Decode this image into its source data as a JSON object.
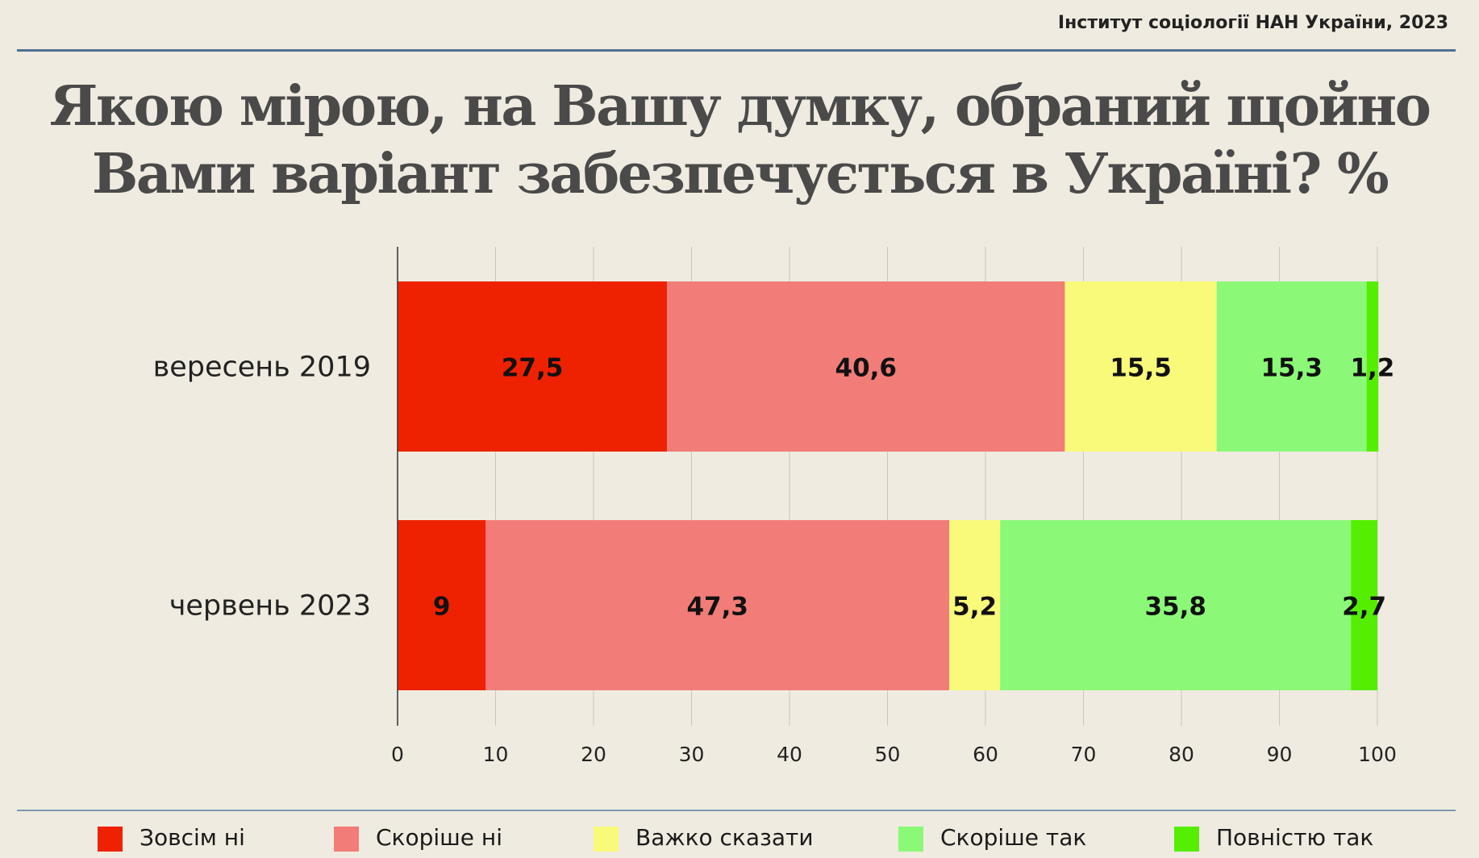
{
  "header": {
    "source": "Інститут соціології НАН України, 2023",
    "title_line1": "Якою мірою, на Вашу думку, обраний щойно",
    "title_line2": "Вами варіант забезпечується в Україні? %"
  },
  "chart_data": {
    "type": "bar",
    "orientation": "horizontal",
    "stacked": true,
    "categories": [
      "вересень 2019",
      "червень 2023"
    ],
    "series": [
      {
        "name": "Зовсім ні",
        "color": "#ee2200",
        "values": [
          27.5,
          9
        ]
      },
      {
        "name": "Скоріше ні",
        "color": "#f17c78",
        "values": [
          40.6,
          47.3
        ]
      },
      {
        "name": "Важко сказати",
        "color": "#f9f97a",
        "values": [
          15.5,
          5.2
        ]
      },
      {
        "name": "Скоріше так",
        "color": "#8cf878",
        "values": [
          15.3,
          35.8
        ]
      },
      {
        "name": "Повністю так",
        "color": "#55ee00",
        "values": [
          1.2,
          2.7
        ]
      }
    ],
    "data_labels": [
      [
        "27,5",
        "40,6",
        "15,5",
        "15,3",
        "1,2"
      ],
      [
        "9",
        "47,3",
        "5,2",
        "35,8",
        "2,7"
      ]
    ],
    "xlim": [
      0,
      100
    ],
    "xticks": [
      "0",
      "10",
      "20",
      "30",
      "40",
      "50",
      "60",
      "70",
      "80",
      "90",
      "100"
    ],
    "grid": true,
    "legend_position": "bottom"
  }
}
